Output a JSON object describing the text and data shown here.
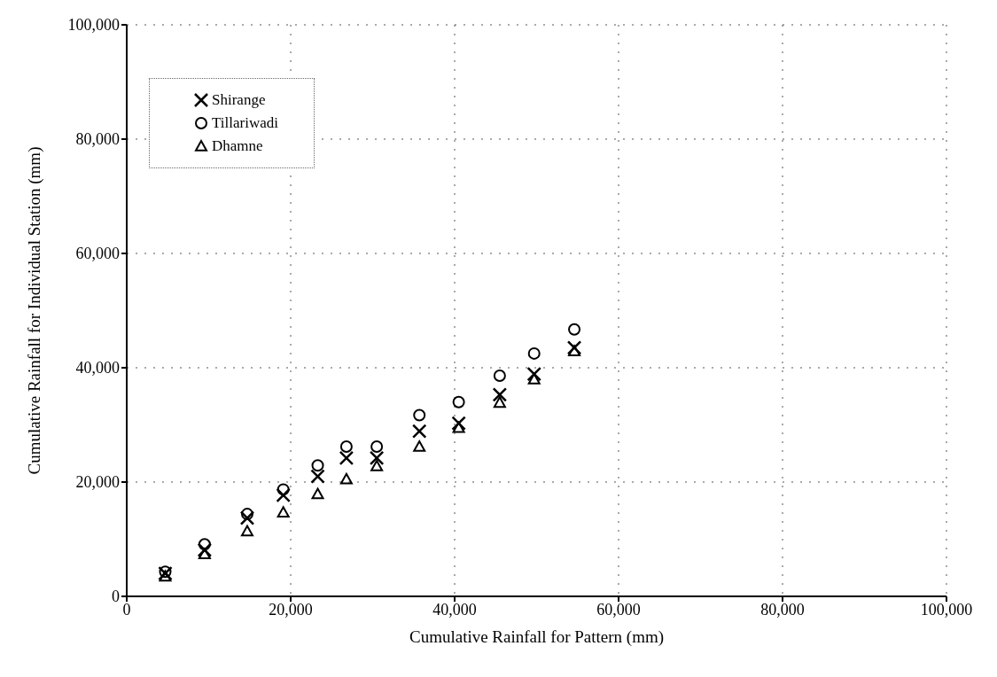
{
  "chart_data": {
    "type": "scatter",
    "xlabel": "Cumulative Rainfall for Pattern (mm)",
    "ylabel": "Cumulative Rainfall for Individual Station (mm)",
    "x": [
      4700,
      9500,
      14700,
      19100,
      23300,
      26800,
      30500,
      35700,
      40500,
      45500,
      49700,
      54600
    ],
    "series": [
      {
        "name": "Shirange",
        "color": "#000000",
        "marker": "cross",
        "values": [
          4000,
          8100,
          13700,
          17700,
          21000,
          24200,
          24200,
          28900,
          30300,
          35300,
          38900,
          43500
        ]
      },
      {
        "name": "Tillariwadi",
        "color": "#000000",
        "marker": "circle",
        "values": [
          4300,
          9100,
          14400,
          18700,
          22900,
          26200,
          26200,
          31700,
          34000,
          38600,
          42500,
          46700
        ]
      },
      {
        "name": "Dhamne",
        "color": "#000000",
        "marker": "triangle",
        "values": [
          3500,
          7400,
          11400,
          14700,
          17900,
          20500,
          22800,
          26200,
          29500,
          33900,
          38000,
          42900
        ]
      }
    ],
    "xlim": [
      0,
      100000
    ],
    "xticks": [
      {
        "value": 0,
        "label": "0"
      },
      {
        "value": 20000,
        "label": "20,000"
      },
      {
        "value": 40000,
        "label": "40,000"
      },
      {
        "value": 60000,
        "label": "60,000"
      },
      {
        "value": 80000,
        "label": "80,000"
      },
      {
        "value": 100000,
        "label": "100,000"
      }
    ],
    "ylim": [
      0,
      100000
    ],
    "yticks": [
      {
        "value": 0,
        "label": "0"
      },
      {
        "value": 20000,
        "label": "20,000"
      },
      {
        "value": 40000,
        "label": "40,000"
      },
      {
        "value": 60000,
        "label": "60,000"
      },
      {
        "value": 80000,
        "label": "80,000"
      },
      {
        "value": 100000,
        "label": "100,000"
      }
    ],
    "grid": true,
    "legend": "top left"
  }
}
